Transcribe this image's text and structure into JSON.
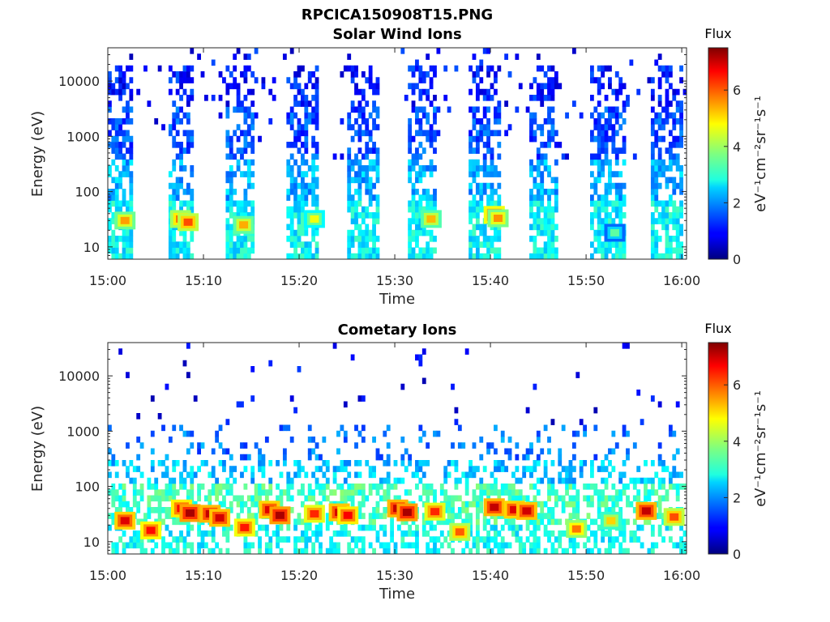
{
  "figure": {
    "title": "RPCICA150908T15.PNG"
  },
  "chart_data": [
    {
      "type": "heatmap",
      "title": "Solar Wind Ions",
      "xlabel": "Time",
      "ylabel": "Energy (eV)",
      "x_ticks": [
        "15:00",
        "15:10",
        "15:20",
        "15:30",
        "15:40",
        "15:50",
        "16:00"
      ],
      "x_range_minutes": [
        0,
        60.5
      ],
      "y_scale": "log",
      "y_ticks": [
        10,
        100,
        1000,
        10000
      ],
      "y_tick_labels": [
        "10",
        "100",
        "1000",
        "10000"
      ],
      "y_range": [
        6,
        40000
      ],
      "colorbar": {
        "title": "Flux",
        "label": "eV⁻¹cm⁻²sr⁻¹s⁻¹",
        "range": [
          0,
          7.5
        ],
        "ticks": [
          0,
          2,
          4,
          6
        ],
        "colormap": "jet"
      },
      "scan_bands_minutes": [
        [
          0.0,
          2.8
        ],
        [
          6.2,
          9.0
        ],
        [
          12.5,
          15.2
        ],
        [
          18.8,
          21.9
        ],
        [
          25.2,
          28.2
        ],
        [
          31.5,
          34.3
        ],
        [
          37.8,
          41.2
        ],
        [
          44.2,
          47.1
        ],
        [
          50.5,
          54.0
        ],
        [
          56.8,
          60.2
        ]
      ],
      "hotspots": [
        {
          "t": 1.8,
          "e": 30,
          "v": 5.4
        },
        {
          "t": 7.6,
          "e": 32,
          "v": 5.8
        },
        {
          "t": 8.4,
          "e": 28,
          "v": 6.0
        },
        {
          "t": 14.2,
          "e": 25,
          "v": 5.3
        },
        {
          "t": 21.6,
          "e": 32,
          "v": 4.6
        },
        {
          "t": 33.8,
          "e": 32,
          "v": 5.2
        },
        {
          "t": 40.4,
          "e": 38,
          "v": 6.4
        },
        {
          "t": 40.8,
          "e": 33,
          "v": 5.5
        },
        {
          "t": 53.0,
          "e": 18,
          "v": 3.5
        }
      ]
    },
    {
      "type": "heatmap",
      "title": "Cometary Ions",
      "xlabel": "Time",
      "ylabel": "Energy (eV)",
      "x_ticks": [
        "15:00",
        "15:10",
        "15:20",
        "15:30",
        "15:40",
        "15:50",
        "16:00"
      ],
      "x_range_minutes": [
        0,
        60.5
      ],
      "y_scale": "log",
      "y_ticks": [
        10,
        100,
        1000,
        10000
      ],
      "y_tick_labels": [
        "10",
        "100",
        "1000",
        "10000"
      ],
      "y_range": [
        6,
        40000
      ],
      "colorbar": {
        "title": "Flux",
        "label": "eV⁻¹cm⁻²sr⁻¹s⁻¹",
        "range": [
          0,
          7.5
        ],
        "ticks": [
          0,
          2,
          4,
          6
        ],
        "colormap": "jet"
      },
      "hotspots": [
        {
          "t": 1.8,
          "e": 24,
          "v": 6.8
        },
        {
          "t": 4.5,
          "e": 16,
          "v": 6.5
        },
        {
          "t": 7.7,
          "e": 40,
          "v": 6.6
        },
        {
          "t": 8.6,
          "e": 33,
          "v": 7.2
        },
        {
          "t": 10.7,
          "e": 32,
          "v": 7.0
        },
        {
          "t": 11.7,
          "e": 27,
          "v": 6.9
        },
        {
          "t": 14.3,
          "e": 18,
          "v": 6.4
        },
        {
          "t": 16.9,
          "e": 38,
          "v": 6.8
        },
        {
          "t": 18.0,
          "e": 30,
          "v": 7.2
        },
        {
          "t": 21.6,
          "e": 32,
          "v": 6.3
        },
        {
          "t": 24.2,
          "e": 34,
          "v": 6.9
        },
        {
          "t": 25.1,
          "e": 30,
          "v": 6.6
        },
        {
          "t": 30.3,
          "e": 40,
          "v": 7.0
        },
        {
          "t": 31.3,
          "e": 34,
          "v": 7.2
        },
        {
          "t": 34.2,
          "e": 35,
          "v": 6.3
        },
        {
          "t": 36.8,
          "e": 15,
          "v": 5.9
        },
        {
          "t": 40.4,
          "e": 42,
          "v": 7.0
        },
        {
          "t": 42.5,
          "e": 38,
          "v": 6.8
        },
        {
          "t": 43.8,
          "e": 36,
          "v": 6.9
        },
        {
          "t": 49.0,
          "e": 17,
          "v": 5.7
        },
        {
          "t": 52.6,
          "e": 24,
          "v": 5.0
        },
        {
          "t": 56.3,
          "e": 36,
          "v": 7.0
        },
        {
          "t": 59.2,
          "e": 28,
          "v": 6.0
        }
      ]
    }
  ]
}
